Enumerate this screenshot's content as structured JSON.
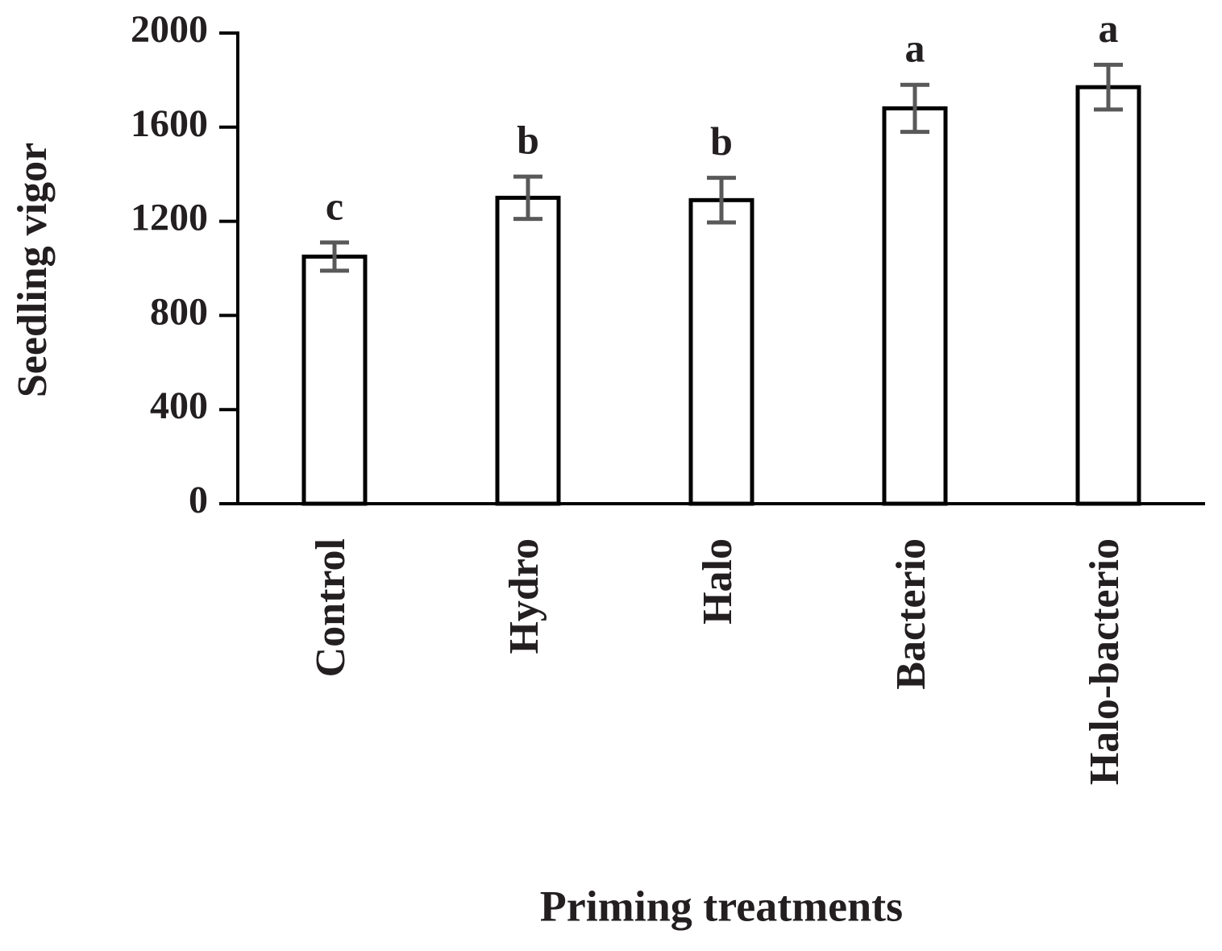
{
  "chart_data": {
    "type": "bar",
    "x_label": "Priming treatments",
    "y_label": "Seedling vigor",
    "categories": [
      "Control",
      "Hydro",
      "Halo",
      "Bacterio",
      "Halo-bacterio"
    ],
    "values": [
      1050,
      1300,
      1290,
      1680,
      1770
    ],
    "errors": [
      60,
      90,
      95,
      100,
      95
    ],
    "annotations": [
      "c",
      "b",
      "b",
      "a",
      "a"
    ],
    "color": "#ffffff",
    "edge_color": "#000000",
    "error_color": "#595959",
    "ylim": [
      0,
      2000
    ],
    "yticks": [
      0,
      400,
      800,
      1200,
      1600,
      2000
    ],
    "grid": false
  }
}
